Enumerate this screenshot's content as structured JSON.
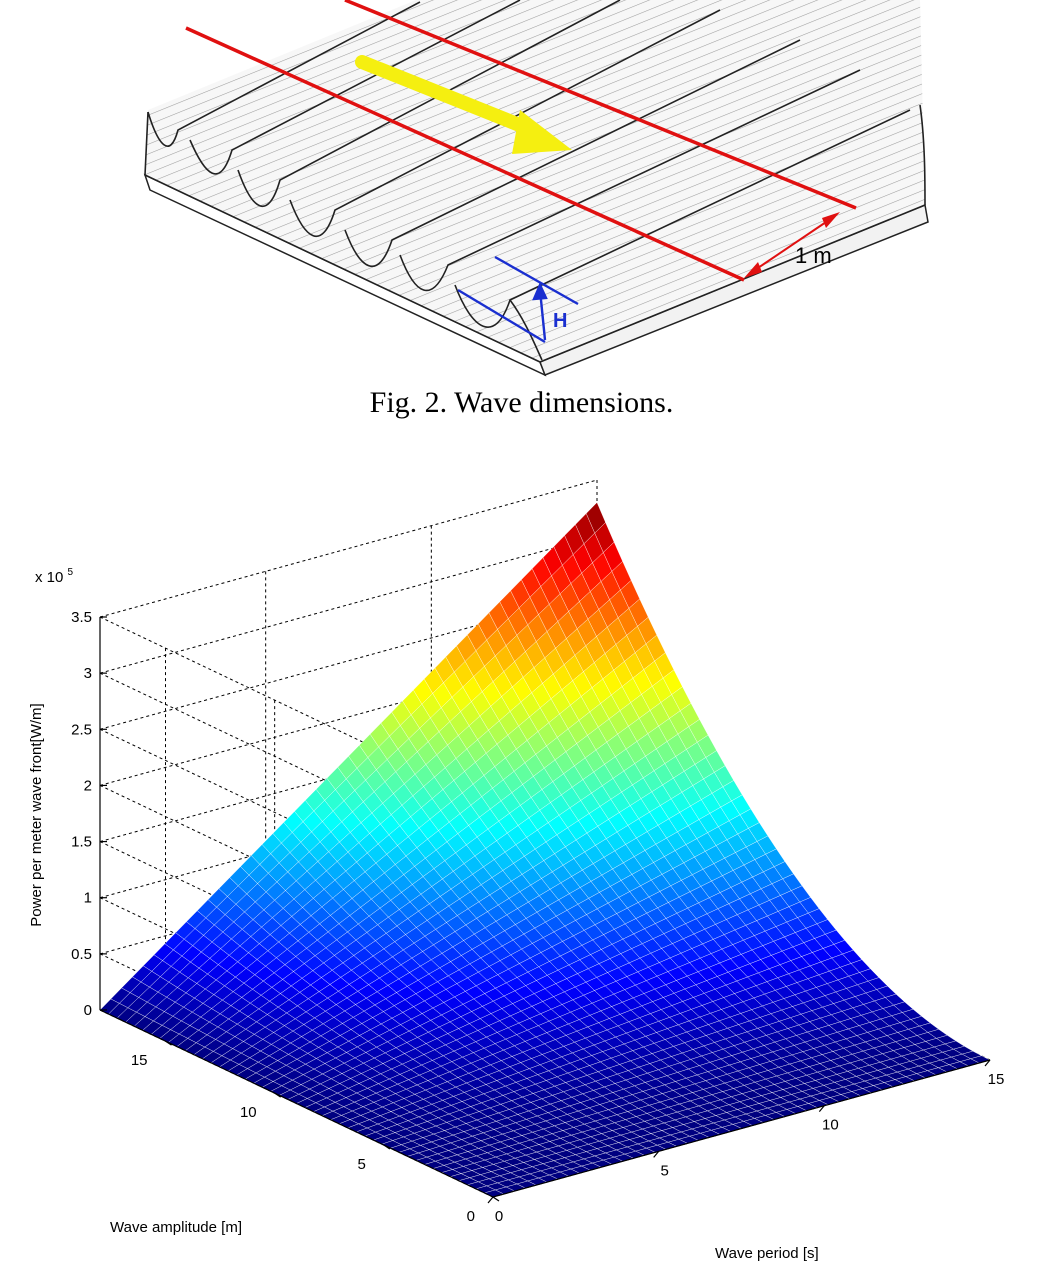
{
  "figure2": {
    "caption": "Fig. 2. Wave dimensions.",
    "length_label": "1 m",
    "height_label": "H",
    "colors": {
      "red_lines": "#e01010",
      "arrow": "#f5ef10",
      "height_marker": "#1a2fd0"
    }
  },
  "chart_data": {
    "type": "surface",
    "title": "",
    "zlabel": "Power per meter wave front[W/m]",
    "xlabel": "Wave period [s]",
    "ylabel": "Wave amplitude [m]",
    "zscale_label": "x 10",
    "zscale_exponent": "5",
    "x_ticks": [
      "0",
      "5",
      "10",
      "15"
    ],
    "y_ticks": [
      "0",
      "5",
      "10",
      "15"
    ],
    "z_ticks": [
      "0",
      "0.5",
      "1",
      "1.5",
      "2",
      "2.5",
      "3",
      "3.5"
    ],
    "xlim": [
      0,
      15
    ],
    "ylim": [
      0,
      18
    ],
    "zlim": [
      0,
      350000
    ],
    "z_max": 330000,
    "grid": true,
    "colormap": "jet"
  }
}
